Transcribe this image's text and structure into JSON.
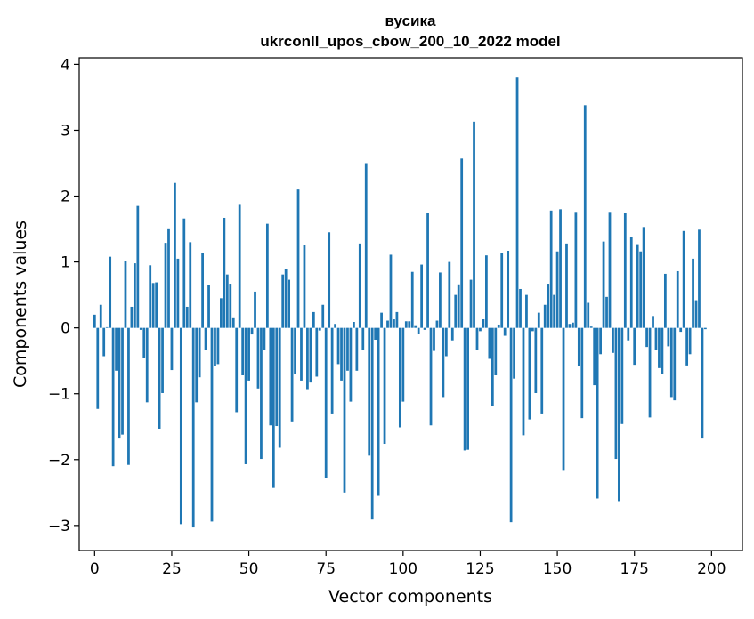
{
  "chart_data": {
    "type": "bar",
    "title_line1": "вусика",
    "title_line2": "ukrconll_upos_cbow_200_10_2022 model",
    "xlabel": "Vector components",
    "ylabel": "Components values",
    "xlim": [
      -5,
      210
    ],
    "ylim": [
      -3.38,
      4.1
    ],
    "xticks": [
      0,
      25,
      50,
      75,
      100,
      125,
      150,
      175,
      200
    ],
    "xtick_labels": [
      "0",
      "25",
      "50",
      "75",
      "100",
      "125",
      "150",
      "175",
      "200"
    ],
    "yticks": [
      4,
      3,
      2,
      1,
      0,
      -1,
      -2,
      -3
    ],
    "ytick_labels": [
      "4",
      "3",
      "2",
      "1",
      "0",
      "−1",
      "−2",
      "−3"
    ],
    "color": "#1f77b4",
    "values": [
      0.2,
      -1.23,
      0.35,
      -0.43,
      0.01,
      1.08,
      -2.1,
      -0.65,
      -1.68,
      -1.62,
      1.02,
      -2.08,
      0.32,
      0.98,
      1.85,
      -0.03,
      -0.45,
      -1.13,
      0.95,
      0.68,
      0.69,
      -1.53,
      -0.99,
      1.29,
      1.51,
      -0.64,
      2.2,
      1.05,
      -2.98,
      1.66,
      0.32,
      1.3,
      -3.03,
      -1.13,
      -0.75,
      1.13,
      -0.34,
      0.65,
      -2.94,
      -0.58,
      -0.55,
      0.45,
      1.67,
      0.81,
      0.67,
      0.16,
      -1.28,
      1.88,
      -0.72,
      -2.07,
      -0.8,
      -0.1,
      0.55,
      -0.92,
      -1.99,
      -0.33,
      1.58,
      -1.48,
      -2.43,
      -1.49,
      -1.82,
      0.81,
      0.89,
      0.73,
      -1.42,
      -0.7,
      2.1,
      -0.8,
      1.26,
      -0.93,
      -0.83,
      0.24,
      -0.74,
      -0.04,
      0.35,
      -2.28,
      1.45,
      -1.3,
      0.06,
      -0.55,
      -0.8,
      -2.5,
      -0.65,
      -1.12,
      0.09,
      -0.65,
      1.28,
      -0.34,
      2.5,
      -1.94,
      -2.91,
      -0.18,
      -2.55,
      0.23,
      -1.76,
      0.11,
      1.11,
      0.13,
      0.24,
      -1.51,
      -1.12,
      0.1,
      0.1,
      0.85,
      0.04,
      -0.09,
      0.96,
      -0.03,
      1.75,
      -1.48,
      -0.35,
      0.11,
      0.84,
      -1.05,
      -0.43,
      1.0,
      -0.19,
      0.5,
      0.66,
      2.57,
      -1.86,
      -1.85,
      0.73,
      3.13,
      -0.34,
      -0.05,
      0.13,
      1.1,
      -0.47,
      -1.19,
      -0.72,
      0.05,
      1.13,
      -0.12,
      1.17,
      -2.95,
      -0.77,
      3.8,
      0.59,
      -1.63,
      0.5,
      -1.39,
      -0.05,
      -0.99,
      0.23,
      -1.3,
      0.35,
      0.67,
      1.78,
      0.5,
      1.16,
      1.8,
      -2.17,
      1.28,
      0.06,
      0.08,
      1.76,
      -0.58,
      -1.37,
      3.38,
      0.38,
      0.02,
      -0.87,
      -2.59,
      -0.4,
      1.31,
      0.47,
      1.76,
      -0.38,
      -1.99,
      -2.63,
      -1.46,
      1.74,
      -0.19,
      1.38,
      -0.56,
      1.27,
      1.16,
      1.53,
      -0.29,
      -1.36,
      0.18,
      -0.33,
      -0.61,
      -0.7,
      0.82,
      -0.28,
      -1.05,
      -1.1,
      0.86,
      -0.06,
      1.47,
      -0.57,
      -0.4,
      1.05,
      0.42,
      1.49,
      -1.68,
      -0.02
    ]
  }
}
